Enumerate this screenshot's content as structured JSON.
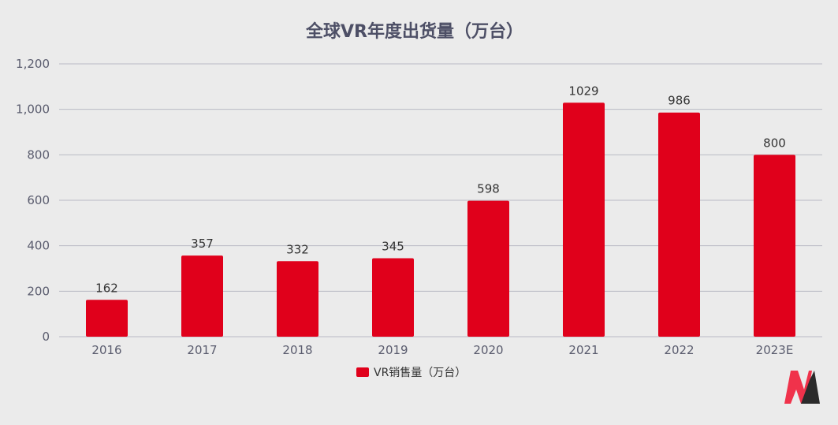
{
  "chart_data": {
    "type": "bar",
    "title": "全球VR年度出货量（万台）",
    "categories": [
      "2016",
      "2017",
      "2018",
      "2019",
      "2020",
      "2021",
      "2022",
      "2023E"
    ],
    "series": [
      {
        "name": "VR销售量（万台）",
        "values": [
          162,
          357,
          332,
          345,
          598,
          1029,
          986,
          800
        ],
        "color": "#e0001b"
      }
    ],
    "yticks": [
      "0",
      "200",
      "400",
      "600",
      "800",
      "1,000",
      "1,200"
    ],
    "ylim": [
      0,
      1200
    ],
    "grid": true,
    "legend_position": "bottom"
  },
  "logo": {
    "name": "brand-logo",
    "colors": [
      "#f0324b",
      "#2b2b2b"
    ]
  }
}
